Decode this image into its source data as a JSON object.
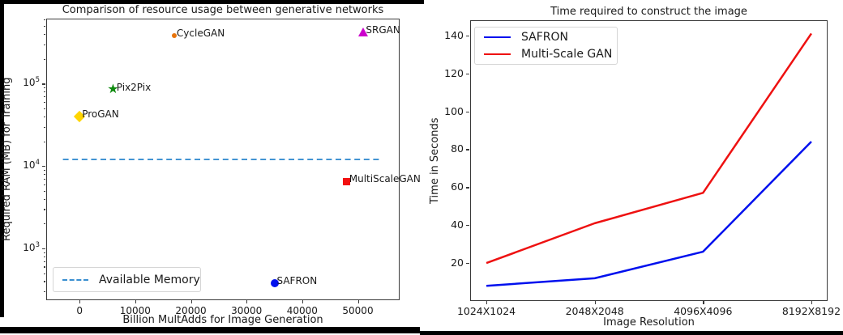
{
  "chart_data": [
    {
      "type": "scatter",
      "title": "Comparison of resource usage between generative networks",
      "xlabel": "Billion MultAdds for Image Generation",
      "ylabel": "Required RAM (MB) for Training",
      "y_scale": "log",
      "x_ticks": [
        0,
        10000,
        20000,
        30000,
        40000,
        50000
      ],
      "y_ticks_log10": [
        3,
        4,
        5
      ],
      "xlim": [
        -6000,
        57500
      ],
      "ylim_log10": [
        2.37,
        5.79
      ],
      "grid": false,
      "points": [
        {
          "label": "ProGAN",
          "x": 0,
          "y": 40000,
          "marker": "diamond",
          "color": "#FFD500"
        },
        {
          "label": "Pix2Pix",
          "x": 6200,
          "y": 85000,
          "marker": "star",
          "color": "#0E8A0E"
        },
        {
          "label": "CycleGAN",
          "x": 17000,
          "y": 380000,
          "marker": "dot",
          "color": "#E8740C"
        },
        {
          "label": "SRGAN",
          "x": 51000,
          "y": 420000,
          "marker": "triangle",
          "color": "#CC00CC"
        },
        {
          "label": "MultiScaleGAN",
          "x": 48000,
          "y": 6500,
          "marker": "square",
          "color": "#F21111"
        },
        {
          "label": "SAFRON",
          "x": 35000,
          "y": 380,
          "marker": "circle",
          "color": "#0010EE"
        }
      ],
      "reference_line": {
        "label": "Available Memory",
        "y": 12000,
        "style": "dashed",
        "color": "#3A8FD0",
        "x_start": -3000,
        "x_end": 54000
      },
      "legend_position": "lower left"
    },
    {
      "type": "line",
      "title": "Time required to construct the image",
      "xlabel": "Image Resolution",
      "ylabel": "Time in Seconds",
      "categories": [
        "1024X1024",
        "2048X2048",
        "4096X4096",
        "8192X8192"
      ],
      "y_ticks": [
        20,
        40,
        60,
        80,
        100,
        120,
        140
      ],
      "ylim": [
        0,
        148
      ],
      "xlim": [
        -0.15,
        3.15
      ],
      "grid": false,
      "series": [
        {
          "name": "SAFRON",
          "color": "#0010EE",
          "values": [
            8,
            12,
            26,
            84
          ]
        },
        {
          "name": "Multi-Scale GAN",
          "color": "#EE1111",
          "values": [
            20,
            41,
            57,
            141
          ]
        }
      ],
      "legend_position": "upper left"
    }
  ]
}
